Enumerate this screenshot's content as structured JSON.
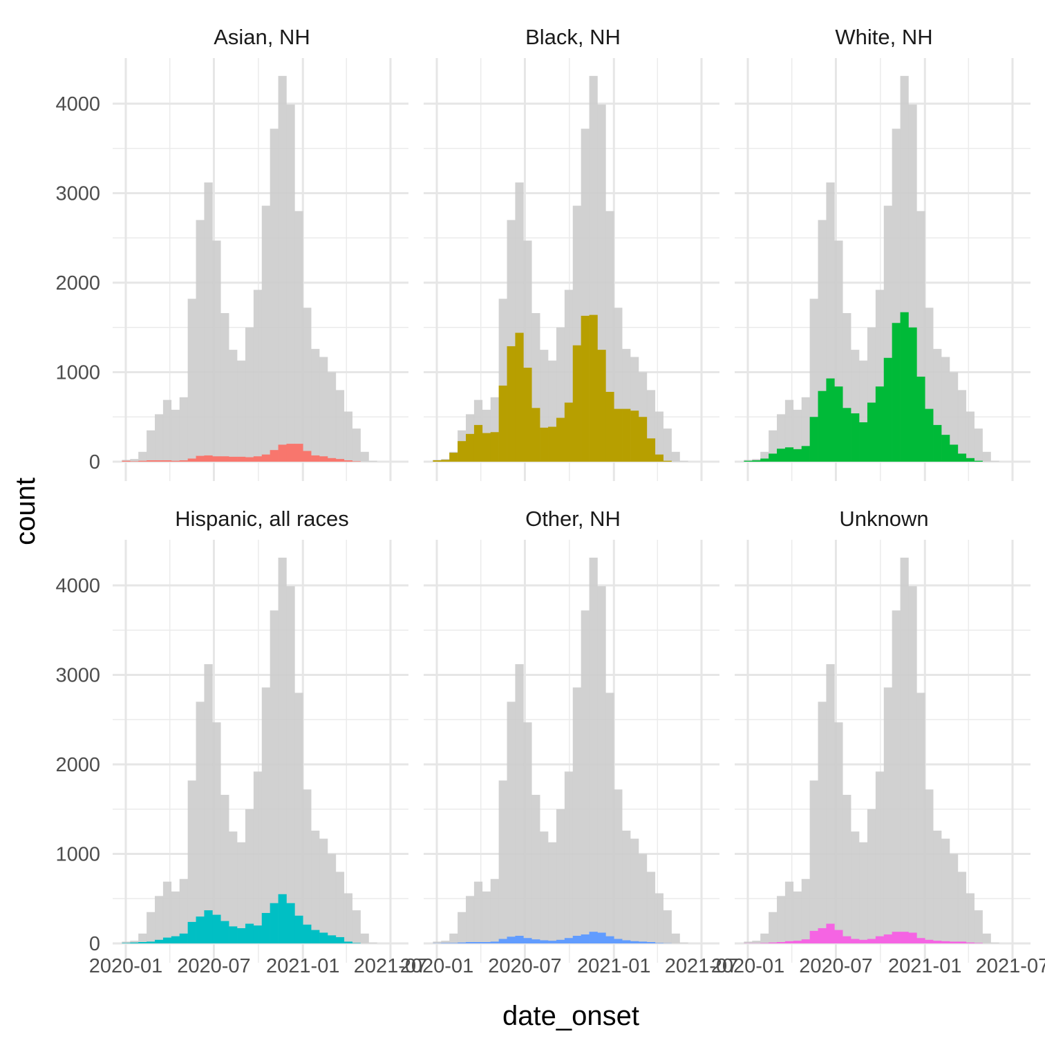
{
  "chart_data": {
    "type": "bar",
    "subtype": "faceted-histogram",
    "xlabel": "date_onset",
    "ylabel": "count",
    "ylim": [
      0,
      4500
    ],
    "y_ticks": [
      0,
      1000,
      2000,
      3000,
      4000
    ],
    "x_ticks": [
      "2020-01",
      "2020-07",
      "2021-01",
      "2021-07"
    ],
    "grid": true,
    "background_series_color": "#cccccc",
    "bins": [
      "2019-12-24",
      "2020-01-10",
      "2020-01-27",
      "2020-02-13",
      "2020-03-01",
      "2020-03-18",
      "2020-04-04",
      "2020-04-21",
      "2020-05-08",
      "2020-05-25",
      "2020-06-11",
      "2020-06-28",
      "2020-07-15",
      "2020-08-01",
      "2020-08-18",
      "2020-09-04",
      "2020-09-21",
      "2020-10-08",
      "2020-10-25",
      "2020-11-11",
      "2020-11-28",
      "2020-12-15",
      "2021-01-01",
      "2021-01-18",
      "2021-02-04",
      "2021-02-21",
      "2021-03-10",
      "2021-03-27",
      "2021-04-13",
      "2021-04-30",
      "2021-05-17",
      "2021-06-03"
    ],
    "total": [
      20,
      30,
      110,
      350,
      530,
      690,
      580,
      720,
      1820,
      2700,
      3120,
      2470,
      1660,
      1250,
      1130,
      1500,
      1920,
      2860,
      3720,
      4310,
      3990,
      2800,
      1720,
      1260,
      1170,
      1000,
      800,
      560,
      370,
      110,
      10,
      0
    ],
    "facets": [
      {
        "name": "Asian, NH",
        "color": "#F8766D",
        "values": [
          10,
          5,
          10,
          15,
          15,
          15,
          10,
          15,
          35,
          65,
          70,
          60,
          60,
          55,
          55,
          50,
          60,
          80,
          130,
          190,
          200,
          200,
          120,
          70,
          60,
          40,
          30,
          15,
          5,
          0,
          0,
          0
        ]
      },
      {
        "name": "Black, NH",
        "color": "#B79F00",
        "values": [
          15,
          20,
          100,
          230,
          310,
          410,
          320,
          330,
          850,
          1290,
          1440,
          1050,
          600,
          380,
          390,
          490,
          660,
          1300,
          1630,
          1640,
          1250,
          780,
          590,
          590,
          570,
          500,
          260,
          80,
          10,
          0,
          0,
          0
        ]
      },
      {
        "name": "White, NH",
        "color": "#00BA38",
        "values": [
          10,
          15,
          35,
          90,
          145,
          160,
          140,
          175,
          500,
          790,
          930,
          840,
          600,
          540,
          440,
          660,
          840,
          1160,
          1550,
          1670,
          1500,
          950,
          590,
          410,
          300,
          190,
          90,
          40,
          10,
          0,
          0,
          0
        ]
      },
      {
        "name": "Hispanic, all races",
        "color": "#00BFC4",
        "values": [
          5,
          10,
          15,
          20,
          40,
          65,
          80,
          110,
          240,
          300,
          370,
          320,
          250,
          190,
          170,
          220,
          200,
          340,
          450,
          550,
          450,
          310,
          210,
          150,
          120,
          90,
          70,
          20,
          5,
          0,
          0,
          0
        ]
      },
      {
        "name": "Other, NH",
        "color": "#619CFF",
        "values": [
          2,
          5,
          5,
          10,
          15,
          15,
          15,
          20,
          50,
          75,
          85,
          60,
          45,
          35,
          30,
          40,
          60,
          85,
          100,
          130,
          120,
          80,
          50,
          35,
          25,
          20,
          15,
          5,
          2,
          0,
          0,
          0
        ]
      },
      {
        "name": "Unknown",
        "color": "#F564E3",
        "values": [
          2,
          2,
          5,
          10,
          15,
          25,
          30,
          45,
          140,
          170,
          220,
          150,
          80,
          50,
          40,
          50,
          80,
          100,
          130,
          130,
          120,
          60,
          40,
          30,
          25,
          20,
          20,
          10,
          5,
          0,
          0,
          0
        ]
      }
    ]
  }
}
